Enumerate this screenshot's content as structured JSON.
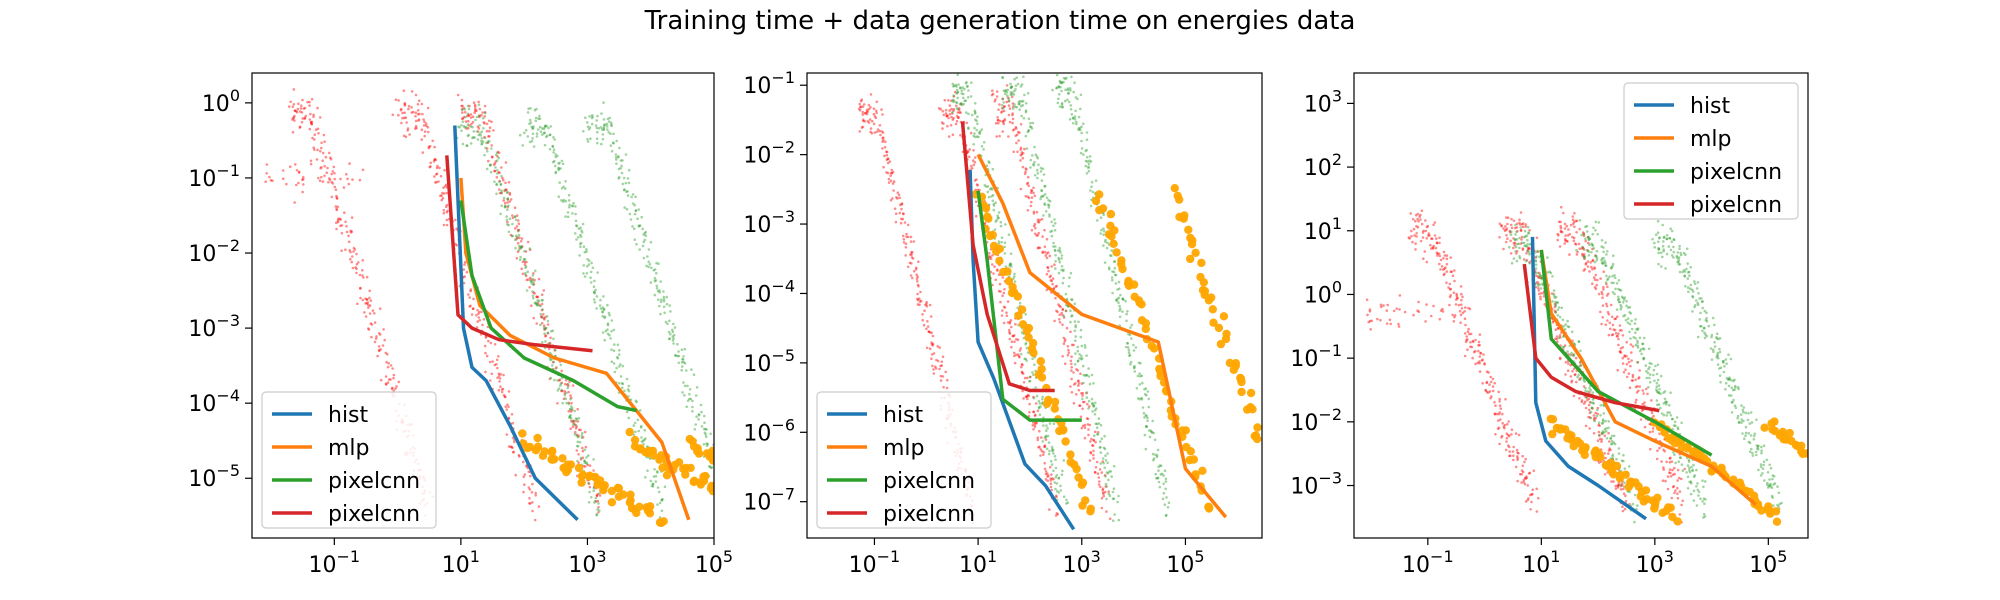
{
  "title": "Training time +  data generation time on energies data",
  "chart_data": [
    {
      "type": "line",
      "xscale": "log",
      "yscale": "log",
      "xlim": [
        0.005,
        100000
      ],
      "ylim": [
        1.6e-06,
        2.5
      ],
      "xticks": [
        {
          "v": 0.1,
          "m": "10",
          "e": "−1"
        },
        {
          "v": 10,
          "m": "10",
          "e": "1"
        },
        {
          "v": 1000,
          "m": "10",
          "e": "3"
        },
        {
          "v": 100000,
          "m": "10",
          "e": "5"
        }
      ],
      "yticks": [
        {
          "v": 1e-05,
          "m": "10",
          "e": "−5"
        },
        {
          "v": 0.0001,
          "m": "10",
          "e": "−4"
        },
        {
          "v": 0.001,
          "m": "10",
          "e": "−3"
        },
        {
          "v": 0.01,
          "m": "10",
          "e": "−2"
        },
        {
          "v": 0.1,
          "m": "10",
          "e": "−1"
        },
        {
          "v": 1,
          "m": "10",
          "e": "0"
        }
      ],
      "legend": "lower-left",
      "series": [
        {
          "name": "hist",
          "color": "#1f77b4",
          "x": [
            8,
            11,
            15,
            25,
            60,
            150,
            700
          ],
          "y": [
            0.5,
            0.001,
            0.0003,
            0.0002,
            5e-05,
            1e-05,
            2.8e-06
          ]
        },
        {
          "name": "mlp",
          "color": "#ff7f0e",
          "x": [
            10,
            12,
            20,
            60,
            300,
            2000,
            15000,
            40000
          ],
          "y": [
            0.1,
            0.01,
            0.002,
            0.0008,
            0.0004,
            0.00025,
            3e-05,
            2.8e-06
          ]
        },
        {
          "name": "pixelcnn",
          "color": "#2ca02c",
          "x": [
            10,
            15,
            30,
            100,
            600,
            3000,
            6000
          ],
          "y": [
            0.05,
            0.005,
            0.001,
            0.0004,
            0.0002,
            9e-05,
            8e-05
          ]
        },
        {
          "name": "pixelcnn",
          "color": "#d62728",
          "x": [
            6,
            9,
            15,
            40,
            150,
            1200
          ],
          "y": [
            0.2,
            0.0015,
            0.001,
            0.0007,
            0.0006,
            0.0005
          ]
        }
      ],
      "scatter_bands": [
        {
          "color": "#ff0000",
          "y0": 0.3,
          "y1": 0.7,
          "gens": [
            0.02,
            1,
            10
          ],
          "gap": [
            5,
            8
          ],
          "lowx": 0.008,
          "lowy": 0.1,
          "noise": 0.28
        },
        {
          "color": "#2ca02c",
          "y0": 0.2,
          "y1": 0.5,
          "gens": [
            10,
            100,
            1000
          ],
          "gap": [
            5,
            8
          ],
          "lowx": 0,
          "lowy": 0,
          "noise": 0.25
        },
        {
          "color": "#ffa500",
          "y0": 2.8e-06,
          "y1": 3e-05,
          "gens": [
            100,
            5000,
            40000
          ],
          "gap": [
            0,
            0
          ],
          "lowx": 0,
          "lowy": 0,
          "noise": 0.12
        }
      ]
    },
    {
      "type": "line",
      "xscale": "log",
      "yscale": "log",
      "xlim": [
        0.005,
        3000000
      ],
      "ylim": [
        3e-08,
        0.15
      ],
      "xticks": [
        {
          "v": 0.1,
          "m": "10",
          "e": "−1"
        },
        {
          "v": 10,
          "m": "10",
          "e": "1"
        },
        {
          "v": 1000,
          "m": "10",
          "e": "3"
        },
        {
          "v": 100000,
          "m": "10",
          "e": "5"
        }
      ],
      "yticks": [
        {
          "v": 1e-07,
          "m": "10",
          "e": "−7"
        },
        {
          "v": 1e-06,
          "m": "10",
          "e": "−6"
        },
        {
          "v": 1e-05,
          "m": "10",
          "e": "−5"
        },
        {
          "v": 0.0001,
          "m": "10",
          "e": "−4"
        },
        {
          "v": 0.001,
          "m": "10",
          "e": "−3"
        },
        {
          "v": 0.01,
          "m": "10",
          "e": "−2"
        },
        {
          "v": 0.1,
          "m": "10",
          "e": "−1"
        }
      ],
      "legend": "lower-left",
      "series": [
        {
          "name": "hist",
          "color": "#1f77b4",
          "x": [
            7,
            8,
            10,
            20,
            80,
            200,
            700
          ],
          "y": [
            0.006,
            0.0003,
            2e-05,
            6e-06,
            3.5e-07,
            1.7e-07,
            4e-08
          ]
        },
        {
          "name": "mlp",
          "color": "#ff7f0e",
          "x": [
            10,
            30,
            100,
            1000,
            30000,
            100000,
            600000
          ],
          "y": [
            0.01,
            0.002,
            0.0002,
            5e-05,
            2e-05,
            3e-07,
            6e-08
          ]
        },
        {
          "name": "pixelcnn",
          "color": "#2ca02c",
          "x": [
            10,
            15,
            30,
            100,
            1000
          ],
          "y": [
            0.003,
            0.0003,
            3e-06,
            1.5e-06,
            1.5e-06
          ]
        },
        {
          "name": "pixelcnn",
          "color": "#d62728",
          "x": [
            5,
            8,
            15,
            40,
            100,
            300
          ],
          "y": [
            0.03,
            0.0005,
            5e-05,
            5e-06,
            4e-06,
            4e-06
          ]
        }
      ],
      "scatter_bands": [
        {
          "color": "#ff0000",
          "y0": 0.02,
          "y1": 0.04,
          "gens": [
            0.05,
            2,
            20
          ],
          "gap": [
            2,
            4
          ],
          "lowx": 0,
          "lowy": 0,
          "noise": 0.3
        },
        {
          "color": "#2ca02c",
          "y0": 0.03,
          "y1": 0.08,
          "gens": [
            3,
            30,
            300
          ],
          "gap": [
            3,
            5
          ],
          "lowx": 0,
          "lowy": 0,
          "noise": 0.3
        },
        {
          "color": "#ffa500",
          "y0": 6e-08,
          "y1": 0.003,
          "gens": [
            10,
            2000,
            60000
          ],
          "gap": [
            0,
            0
          ],
          "lowx": 0,
          "lowy": 0,
          "noise": 0.15
        }
      ]
    },
    {
      "type": "line",
      "xscale": "log",
      "yscale": "log",
      "xlim": [
        0.005,
        500000
      ],
      "ylim": [
        0.00015,
        3000
      ],
      "xticks": [
        {
          "v": 0.1,
          "m": "10",
          "e": "−1"
        },
        {
          "v": 10,
          "m": "10",
          "e": "1"
        },
        {
          "v": 1000,
          "m": "10",
          "e": "3"
        },
        {
          "v": 100000,
          "m": "10",
          "e": "5"
        }
      ],
      "yticks": [
        {
          "v": 0.001,
          "m": "10",
          "e": "−3"
        },
        {
          "v": 0.01,
          "m": "10",
          "e": "−2"
        },
        {
          "v": 0.1,
          "m": "10",
          "e": "−1"
        },
        {
          "v": 1,
          "m": "10",
          "e": "0"
        },
        {
          "v": 10,
          "m": "10",
          "e": "1"
        },
        {
          "v": 100,
          "m": "10",
          "e": "2"
        },
        {
          "v": 1000,
          "m": "10",
          "e": "3"
        }
      ],
      "legend": "upper-right",
      "series": [
        {
          "name": "hist",
          "color": "#1f77b4",
          "x": [
            7,
            8,
            12,
            30,
            100,
            700
          ],
          "y": [
            8,
            0.02,
            0.005,
            0.002,
            0.001,
            0.0003
          ]
        },
        {
          "name": "mlp",
          "color": "#ff7f0e",
          "x": [
            10,
            15,
            50,
            200,
            1000,
            10000,
            60000
          ],
          "y": [
            5,
            0.5,
            0.1,
            0.01,
            0.005,
            0.002,
            0.0005
          ]
        },
        {
          "name": "pixelcnn",
          "color": "#2ca02c",
          "x": [
            10,
            15,
            30,
            100,
            1000,
            10000
          ],
          "y": [
            5,
            0.2,
            0.1,
            0.03,
            0.01,
            0.003
          ]
        },
        {
          "name": "pixelcnn",
          "color": "#d62728",
          "x": [
            5,
            8,
            15,
            40,
            200,
            1200
          ],
          "y": [
            3,
            0.1,
            0.05,
            0.03,
            0.02,
            0.015
          ]
        }
      ],
      "scatter_bands": [
        {
          "color": "#ff0000",
          "y0": 5,
          "y1": 10,
          "gens": [
            0.05,
            2,
            20
          ],
          "gap": [
            2,
            4
          ],
          "lowx": 0.008,
          "lowy": 0.5,
          "noise": 0.35
        },
        {
          "color": "#2ca02c",
          "y0": 3,
          "y1": 6,
          "gens": [
            3,
            50,
            1000
          ],
          "gap": [
            3,
            5
          ],
          "lowx": 0,
          "lowy": 0,
          "noise": 0.3
        },
        {
          "color": "#ffa500",
          "y0": 0.0003,
          "y1": 0.01,
          "gens": [
            15,
            1000,
            100000
          ],
          "gap": [
            0,
            0
          ],
          "lowx": 0,
          "lowy": 0,
          "noise": 0.1
        }
      ]
    }
  ]
}
